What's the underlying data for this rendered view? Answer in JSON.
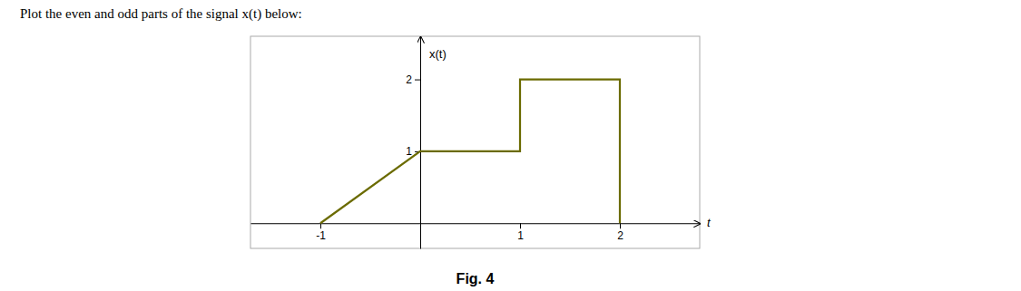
{
  "chart_data": {
    "type": "line",
    "title": "x(t)",
    "subtitle": "Plot the even and odd parts of the signal x(t) below:",
    "caption": "Fig. 4",
    "xlabel": "t",
    "x": [
      -1,
      0,
      0,
      1,
      1,
      2,
      2
    ],
    "values": [
      0,
      1,
      1,
      1,
      2,
      2,
      0
    ],
    "color": "#6B6B00",
    "xlim": [
      -1.7,
      2.8
    ],
    "ylim": [
      -0.35,
      2.6
    ],
    "xticks": [
      -1,
      1,
      2
    ],
    "yticks": [
      1,
      2
    ],
    "grid": false
  }
}
